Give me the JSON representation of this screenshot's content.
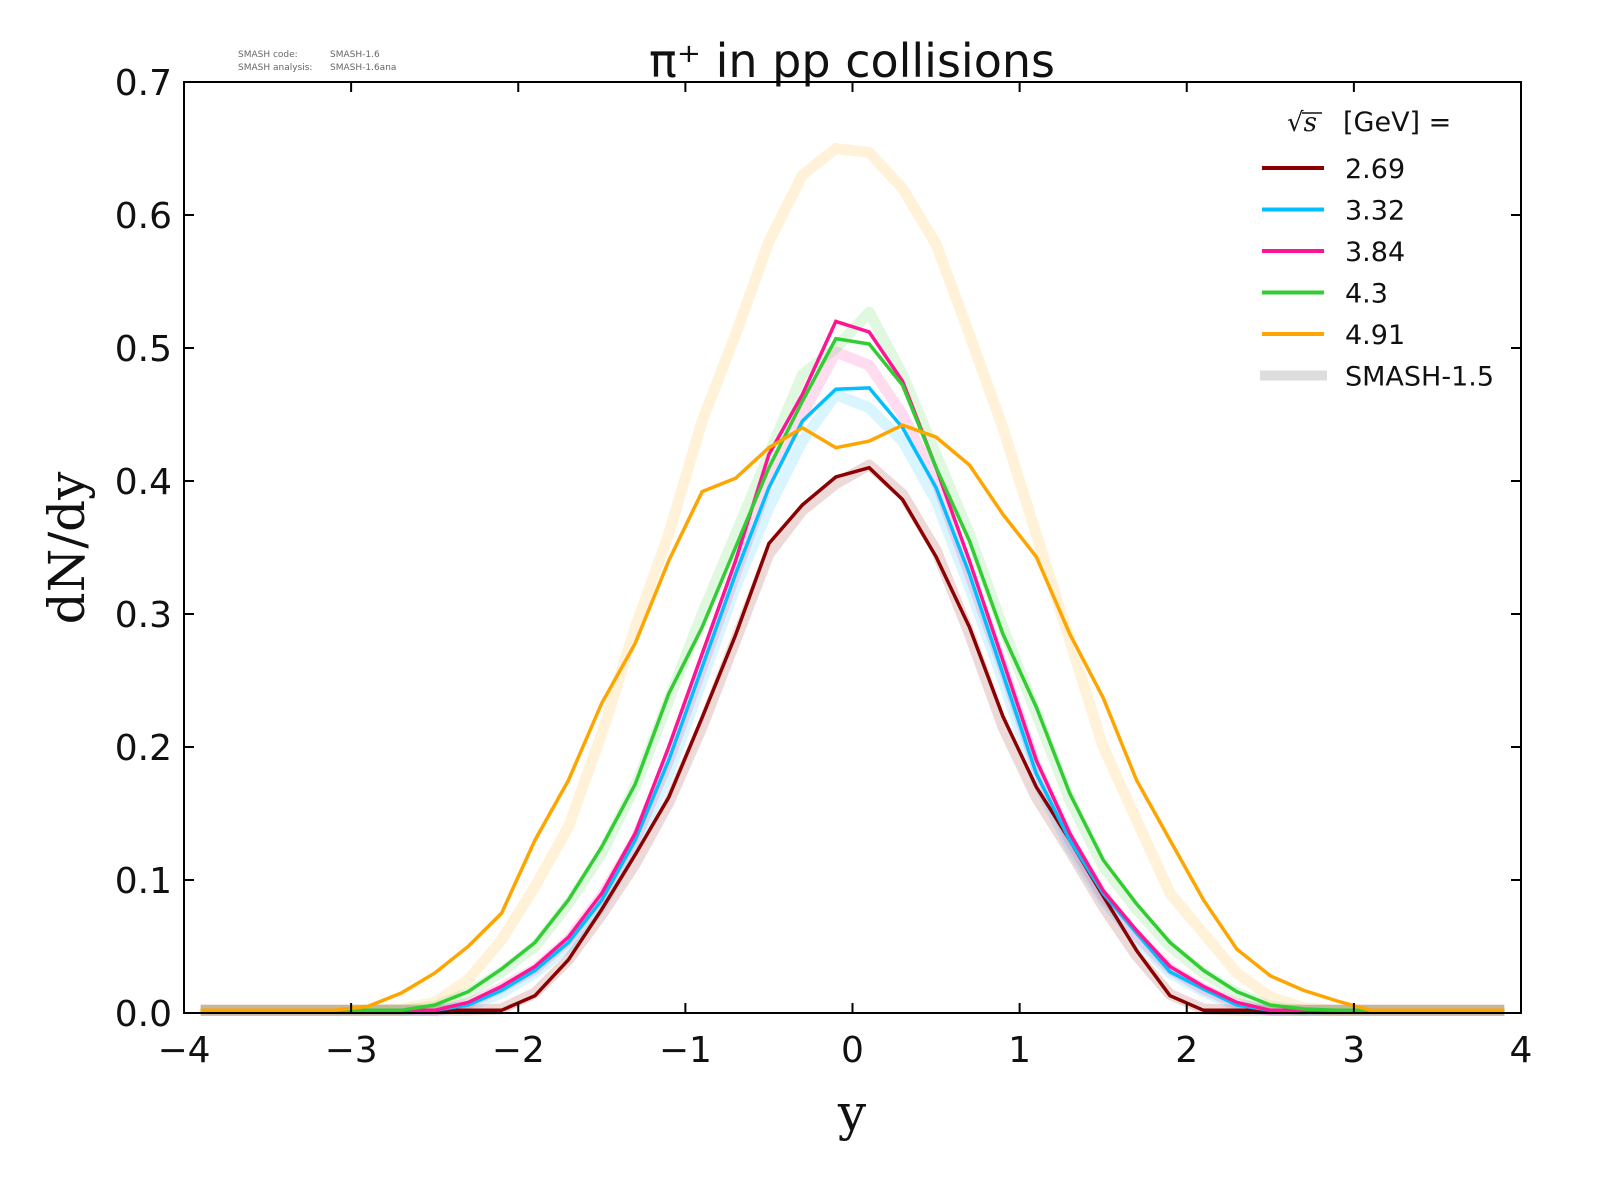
{
  "meta": {
    "code_label": "SMASH code:",
    "code_value": "SMASH-1.6",
    "analysis_label": "SMASH analysis:",
    "analysis_value": "SMASH-1.6ana"
  },
  "chart_data": {
    "type": "line",
    "title": "π⁺ in pp collisions",
    "xlabel": "y",
    "ylabel": "dN/dy",
    "xlim": [
      -4,
      4
    ],
    "ylim": [
      0,
      0.7
    ],
    "xticks": [
      -4,
      -3,
      -2,
      -1,
      0,
      1,
      2,
      3,
      4
    ],
    "xtick_labels": [
      "−4",
      "−3",
      "−2",
      "−1",
      "0",
      "1",
      "2",
      "3",
      "4"
    ],
    "yticks": [
      0,
      0.1,
      0.2,
      0.3,
      0.4,
      0.5,
      0.6,
      0.7
    ],
    "ytick_labels": [
      "0.0",
      "0.1",
      "0.2",
      "0.3",
      "0.4",
      "0.5",
      "0.6",
      "0.7"
    ],
    "grid": false,
    "legend": {
      "placement": "top-right",
      "title_sqrt": "√s",
      "title_rest": "[GeV] =",
      "reference_label": "SMASH-1.5",
      "reference_color": "#dddddd"
    },
    "x": [
      -3.9,
      -3.7,
      -3.5,
      -3.3,
      -3.1,
      -2.9,
      -2.7,
      -2.5,
      -2.3,
      -2.1,
      -1.9,
      -1.7,
      -1.5,
      -1.3,
      -1.1,
      -0.9,
      -0.7,
      -0.5,
      -0.3,
      -0.1,
      0.1,
      0.3,
      0.5,
      0.7,
      0.9,
      1.1,
      1.3,
      1.5,
      1.7,
      1.9,
      2.1,
      2.3,
      2.5,
      2.7,
      2.9,
      3.1,
      3.3,
      3.5,
      3.7,
      3.9
    ],
    "series": [
      {
        "name": "2.69",
        "color": "#8b0000",
        "values": [
          0,
          0,
          0,
          0,
          0,
          0,
          0,
          0,
          0,
          0.002,
          0.013,
          0.04,
          0.078,
          0.119,
          0.162,
          0.222,
          0.284,
          0.353,
          0.382,
          0.403,
          0.41,
          0.386,
          0.343,
          0.29,
          0.223,
          0.17,
          0.13,
          0.088,
          0.047,
          0.013,
          0.002,
          0,
          0,
          0,
          0,
          0,
          0,
          0,
          0,
          0
        ],
        "reference": [
          0,
          0,
          0,
          0,
          0,
          0,
          0,
          0,
          0,
          0.003,
          0.015,
          0.04,
          0.074,
          0.112,
          0.158,
          0.215,
          0.28,
          0.345,
          0.378,
          0.398,
          0.412,
          0.39,
          0.348,
          0.285,
          0.215,
          0.162,
          0.122,
          0.08,
          0.043,
          0.014,
          0.003,
          0,
          0,
          0,
          0,
          0,
          0,
          0,
          0,
          0
        ]
      },
      {
        "name": "3.32",
        "color": "#00bfff",
        "values": [
          0,
          0,
          0,
          0,
          0,
          0,
          0,
          0.001,
          0.006,
          0.017,
          0.032,
          0.053,
          0.085,
          0.13,
          0.19,
          0.26,
          0.33,
          0.395,
          0.445,
          0.469,
          0.47,
          0.44,
          0.395,
          0.33,
          0.255,
          0.18,
          0.13,
          0.09,
          0.06,
          0.031,
          0.018,
          0.006,
          0.001,
          0,
          0,
          0,
          0,
          0,
          0,
          0
        ],
        "reference": [
          0,
          0,
          0,
          0,
          0,
          0,
          0,
          0.001,
          0.005,
          0.015,
          0.03,
          0.05,
          0.08,
          0.125,
          0.18,
          0.25,
          0.32,
          0.38,
          0.43,
          0.465,
          0.455,
          0.43,
          0.385,
          0.32,
          0.25,
          0.175,
          0.125,
          0.085,
          0.055,
          0.03,
          0.016,
          0.005,
          0.001,
          0,
          0,
          0,
          0,
          0,
          0,
          0
        ]
      },
      {
        "name": "3.84",
        "color": "#ff1493",
        "values": [
          0,
          0,
          0,
          0,
          0,
          0,
          0,
          0.001,
          0.008,
          0.02,
          0.035,
          0.057,
          0.09,
          0.135,
          0.2,
          0.27,
          0.34,
          0.42,
          0.465,
          0.52,
          0.512,
          0.475,
          0.41,
          0.34,
          0.265,
          0.19,
          0.135,
          0.092,
          0.062,
          0.035,
          0.02,
          0.008,
          0.002,
          0,
          0,
          0,
          0,
          0,
          0,
          0
        ],
        "reference": [
          0,
          0,
          0,
          0,
          0,
          0,
          0,
          0.001,
          0.007,
          0.019,
          0.033,
          0.055,
          0.088,
          0.13,
          0.19,
          0.26,
          0.33,
          0.4,
          0.45,
          0.497,
          0.487,
          0.45,
          0.4,
          0.33,
          0.26,
          0.185,
          0.13,
          0.088,
          0.058,
          0.033,
          0.018,
          0.007,
          0.002,
          0,
          0,
          0,
          0,
          0,
          0,
          0
        ]
      },
      {
        "name": "4.3",
        "color": "#32cd32",
        "values": [
          0,
          0,
          0,
          0,
          0,
          0,
          0.001,
          0.006,
          0.016,
          0.033,
          0.053,
          0.085,
          0.125,
          0.172,
          0.24,
          0.29,
          0.35,
          0.41,
          0.46,
          0.507,
          0.503,
          0.472,
          0.41,
          0.355,
          0.285,
          0.23,
          0.165,
          0.115,
          0.082,
          0.053,
          0.032,
          0.016,
          0.006,
          0.003,
          0.001,
          0,
          0,
          0,
          0,
          0
        ],
        "reference": [
          0,
          0,
          0,
          0,
          0,
          0,
          0.001,
          0.005,
          0.015,
          0.031,
          0.05,
          0.082,
          0.12,
          0.17,
          0.235,
          0.3,
          0.36,
          0.42,
          0.48,
          0.5,
          0.527,
          0.48,
          0.42,
          0.36,
          0.29,
          0.225,
          0.16,
          0.11,
          0.078,
          0.05,
          0.03,
          0.015,
          0.005,
          0.002,
          0.001,
          0,
          0,
          0,
          0,
          0
        ]
      },
      {
        "name": "4.91",
        "color": "#ffa500",
        "values": [
          0,
          0,
          0,
          0.001,
          0.002,
          0.005,
          0.015,
          0.03,
          0.05,
          0.075,
          0.13,
          0.175,
          0.233,
          0.278,
          0.34,
          0.392,
          0.402,
          0.425,
          0.44,
          0.425,
          0.43,
          0.442,
          0.433,
          0.412,
          0.375,
          0.343,
          0.285,
          0.237,
          0.175,
          0.13,
          0.085,
          0.048,
          0.028,
          0.017,
          0.009,
          0.002,
          0,
          0,
          0,
          0
        ],
        "reference": [
          0,
          0,
          0,
          0,
          0,
          0.001,
          0.003,
          0.008,
          0.025,
          0.055,
          0.095,
          0.14,
          0.21,
          0.29,
          0.36,
          0.445,
          0.51,
          0.58,
          0.63,
          0.65,
          0.647,
          0.62,
          0.578,
          0.51,
          0.44,
          0.36,
          0.28,
          0.2,
          0.145,
          0.09,
          0.06,
          0.03,
          0.012,
          0.004,
          0.001,
          0,
          0,
          0,
          0,
          0
        ]
      }
    ]
  }
}
